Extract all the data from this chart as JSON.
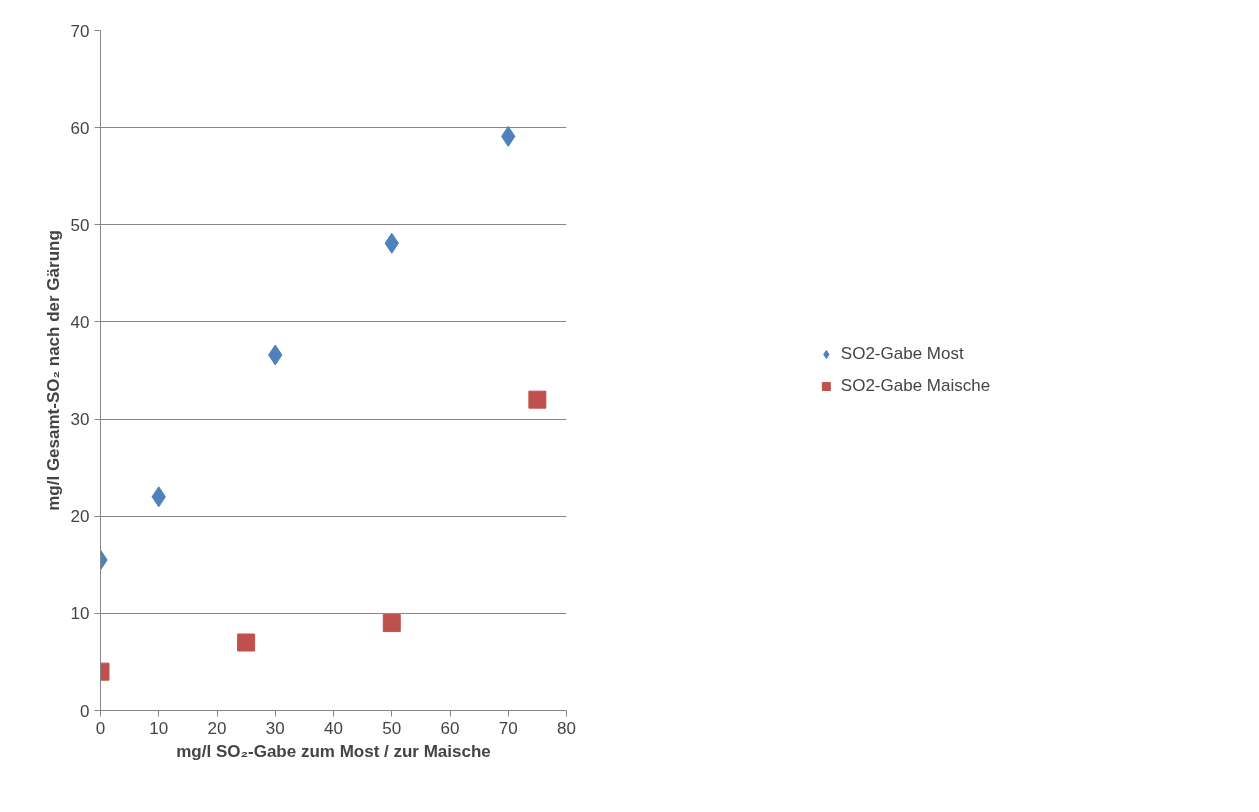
{
  "chart_data": {
    "type": "scatter",
    "xlabel": "mg/l SO₂-Gabe zum Most / zur Maische",
    "ylabel": "mg/l Gesamt-SO₂ nach der Gärung",
    "xlim": [
      0,
      80
    ],
    "xticks": [
      0,
      10,
      20,
      30,
      40,
      50,
      60,
      70,
      80
    ],
    "ylim": [
      0,
      70
    ],
    "yticks": [
      0,
      10,
      20,
      30,
      40,
      50,
      60,
      70
    ],
    "grid": "y",
    "legend": "right",
    "series": [
      {
        "name": "SO2-Gabe Most",
        "color": "#4f81bd",
        "marker": "diamond",
        "x": [
          0,
          10,
          30,
          50,
          70
        ],
        "values": [
          15.5,
          22.0,
          36.6,
          48.1,
          59.1
        ]
      },
      {
        "name": "SO2-Gabe Maische",
        "color": "#c0504d",
        "marker": "square",
        "x": [
          0,
          25,
          50,
          75
        ],
        "values": [
          4.0,
          7.0,
          9.0,
          32.0
        ]
      }
    ]
  }
}
